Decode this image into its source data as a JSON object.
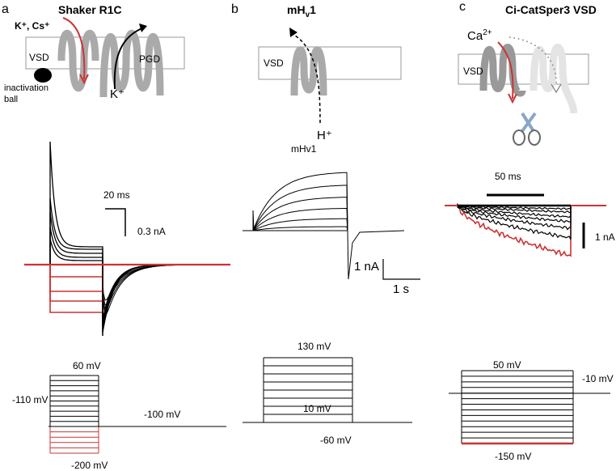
{
  "panels": [
    {
      "letter": "a",
      "title": "Shaker R1C",
      "schematic": {
        "ions": "K⁺, Cs⁺",
        "vsd": "VSD",
        "pgd": "PGD",
        "ball_1": "inactivation",
        "ball_2": "ball",
        "ion_in": "K⁺"
      },
      "scale": {
        "time": "20 ms",
        "current": "0.3 nA"
      },
      "protocol": {
        "top": "60 mV",
        "hold": "-110 mV",
        "post": "-100 mV",
        "bottom": "-200 mV"
      }
    },
    {
      "letter": "b",
      "title": {
        "main": "mH",
        "sub": "v",
        "end": "1"
      },
      "schematic": {
        "vsd": "VSD",
        "ion": "H⁺"
      },
      "trace_label": "mHv1",
      "scale": {
        "current": "1 nA",
        "time": "1 s"
      },
      "protocol": {
        "top": "130 mV",
        "inner": "10 mV",
        "hold": "-60 mV"
      }
    },
    {
      "letter": "c",
      "title": "Ci-CatSper3 VSD",
      "schematic": {
        "ion": "Ca",
        "charge": "2+",
        "vsd": "VSD"
      },
      "scale": {
        "time": "50 ms",
        "current": "1 nA"
      },
      "protocol": {
        "top": "50 mV",
        "hold": "-10 mV",
        "bottom": "-150 mV"
      }
    }
  ]
}
